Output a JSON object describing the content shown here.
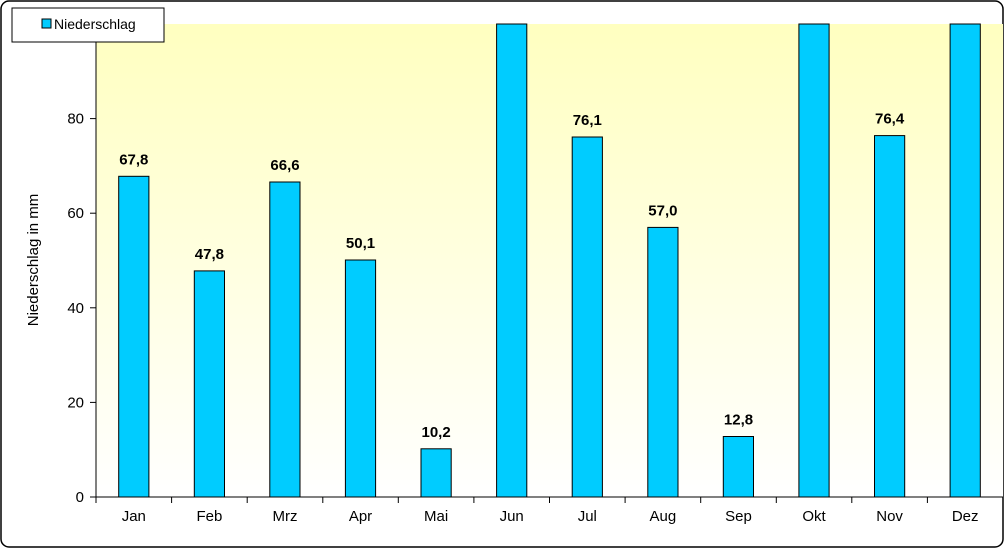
{
  "chart_data": {
    "type": "bar",
    "categories": [
      "Jan",
      "Feb",
      "Mrz",
      "Apr",
      "Mai",
      "Jun",
      "Jul",
      "Aug",
      "Sep",
      "Okt",
      "Nov",
      "Dez"
    ],
    "series": [
      {
        "name": "Niederschlag",
        "values": [
          67.8,
          47.8,
          66.6,
          50.1,
          10.2,
          null,
          76.1,
          57.0,
          12.8,
          null,
          76.4,
          null
        ],
        "value_labels": [
          "67,8",
          "47,8",
          "66,6",
          "50,1",
          "10,2",
          "",
          "76,1",
          "57,0",
          "12,8",
          "",
          "76,4",
          ""
        ],
        "clipped": [
          false,
          false,
          false,
          false,
          false,
          true,
          false,
          false,
          false,
          true,
          false,
          true
        ]
      }
    ],
    "title": "",
    "xlabel": "",
    "ylabel": "Niederschlag in mm",
    "ylim": [
      0,
      100
    ],
    "yticks": [
      0,
      20,
      40,
      60,
      80
    ],
    "ytick_labels": [
      "0",
      "20",
      "40",
      "60",
      "80"
    ],
    "grid": false,
    "legend_position": "top-left",
    "colors": {
      "bar_fill": "#00CCFF",
      "bar_stroke": "#000000",
      "plot_bg_top": "#FFFFC0",
      "plot_bg_bottom": "#FFFFFF"
    }
  }
}
